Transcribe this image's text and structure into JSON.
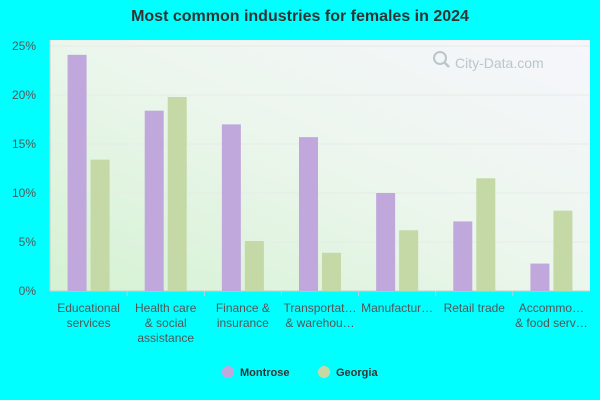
{
  "chart_data": {
    "type": "bar",
    "title": "Most common industries for females in 2024",
    "categories": [
      [
        "Educational",
        "services"
      ],
      [
        "Health care",
        "& social",
        "assistance"
      ],
      [
        "Finance &",
        "insurance"
      ],
      [
        "Transportat…",
        "& warehou…"
      ],
      [
        "Manufactur…"
      ],
      [
        "Retail trade"
      ],
      [
        "Accommo…",
        "& food serv…"
      ]
    ],
    "series": [
      {
        "name": "Montrose",
        "color": "#c0a8dc",
        "values": [
          24.1,
          18.4,
          17.0,
          15.7,
          10.0,
          7.1,
          2.8
        ]
      },
      {
        "name": "Georgia",
        "color": "#c4d9a6",
        "values": [
          13.4,
          19.8,
          5.1,
          3.9,
          6.2,
          11.5,
          8.2
        ]
      }
    ],
    "yticks": [
      "0%",
      "5%",
      "10%",
      "15%",
      "20%",
      "25%"
    ],
    "ylim": [
      0,
      25
    ],
    "legend_position": "bottom",
    "grid": true
  },
  "watermark": "City-Data.com"
}
